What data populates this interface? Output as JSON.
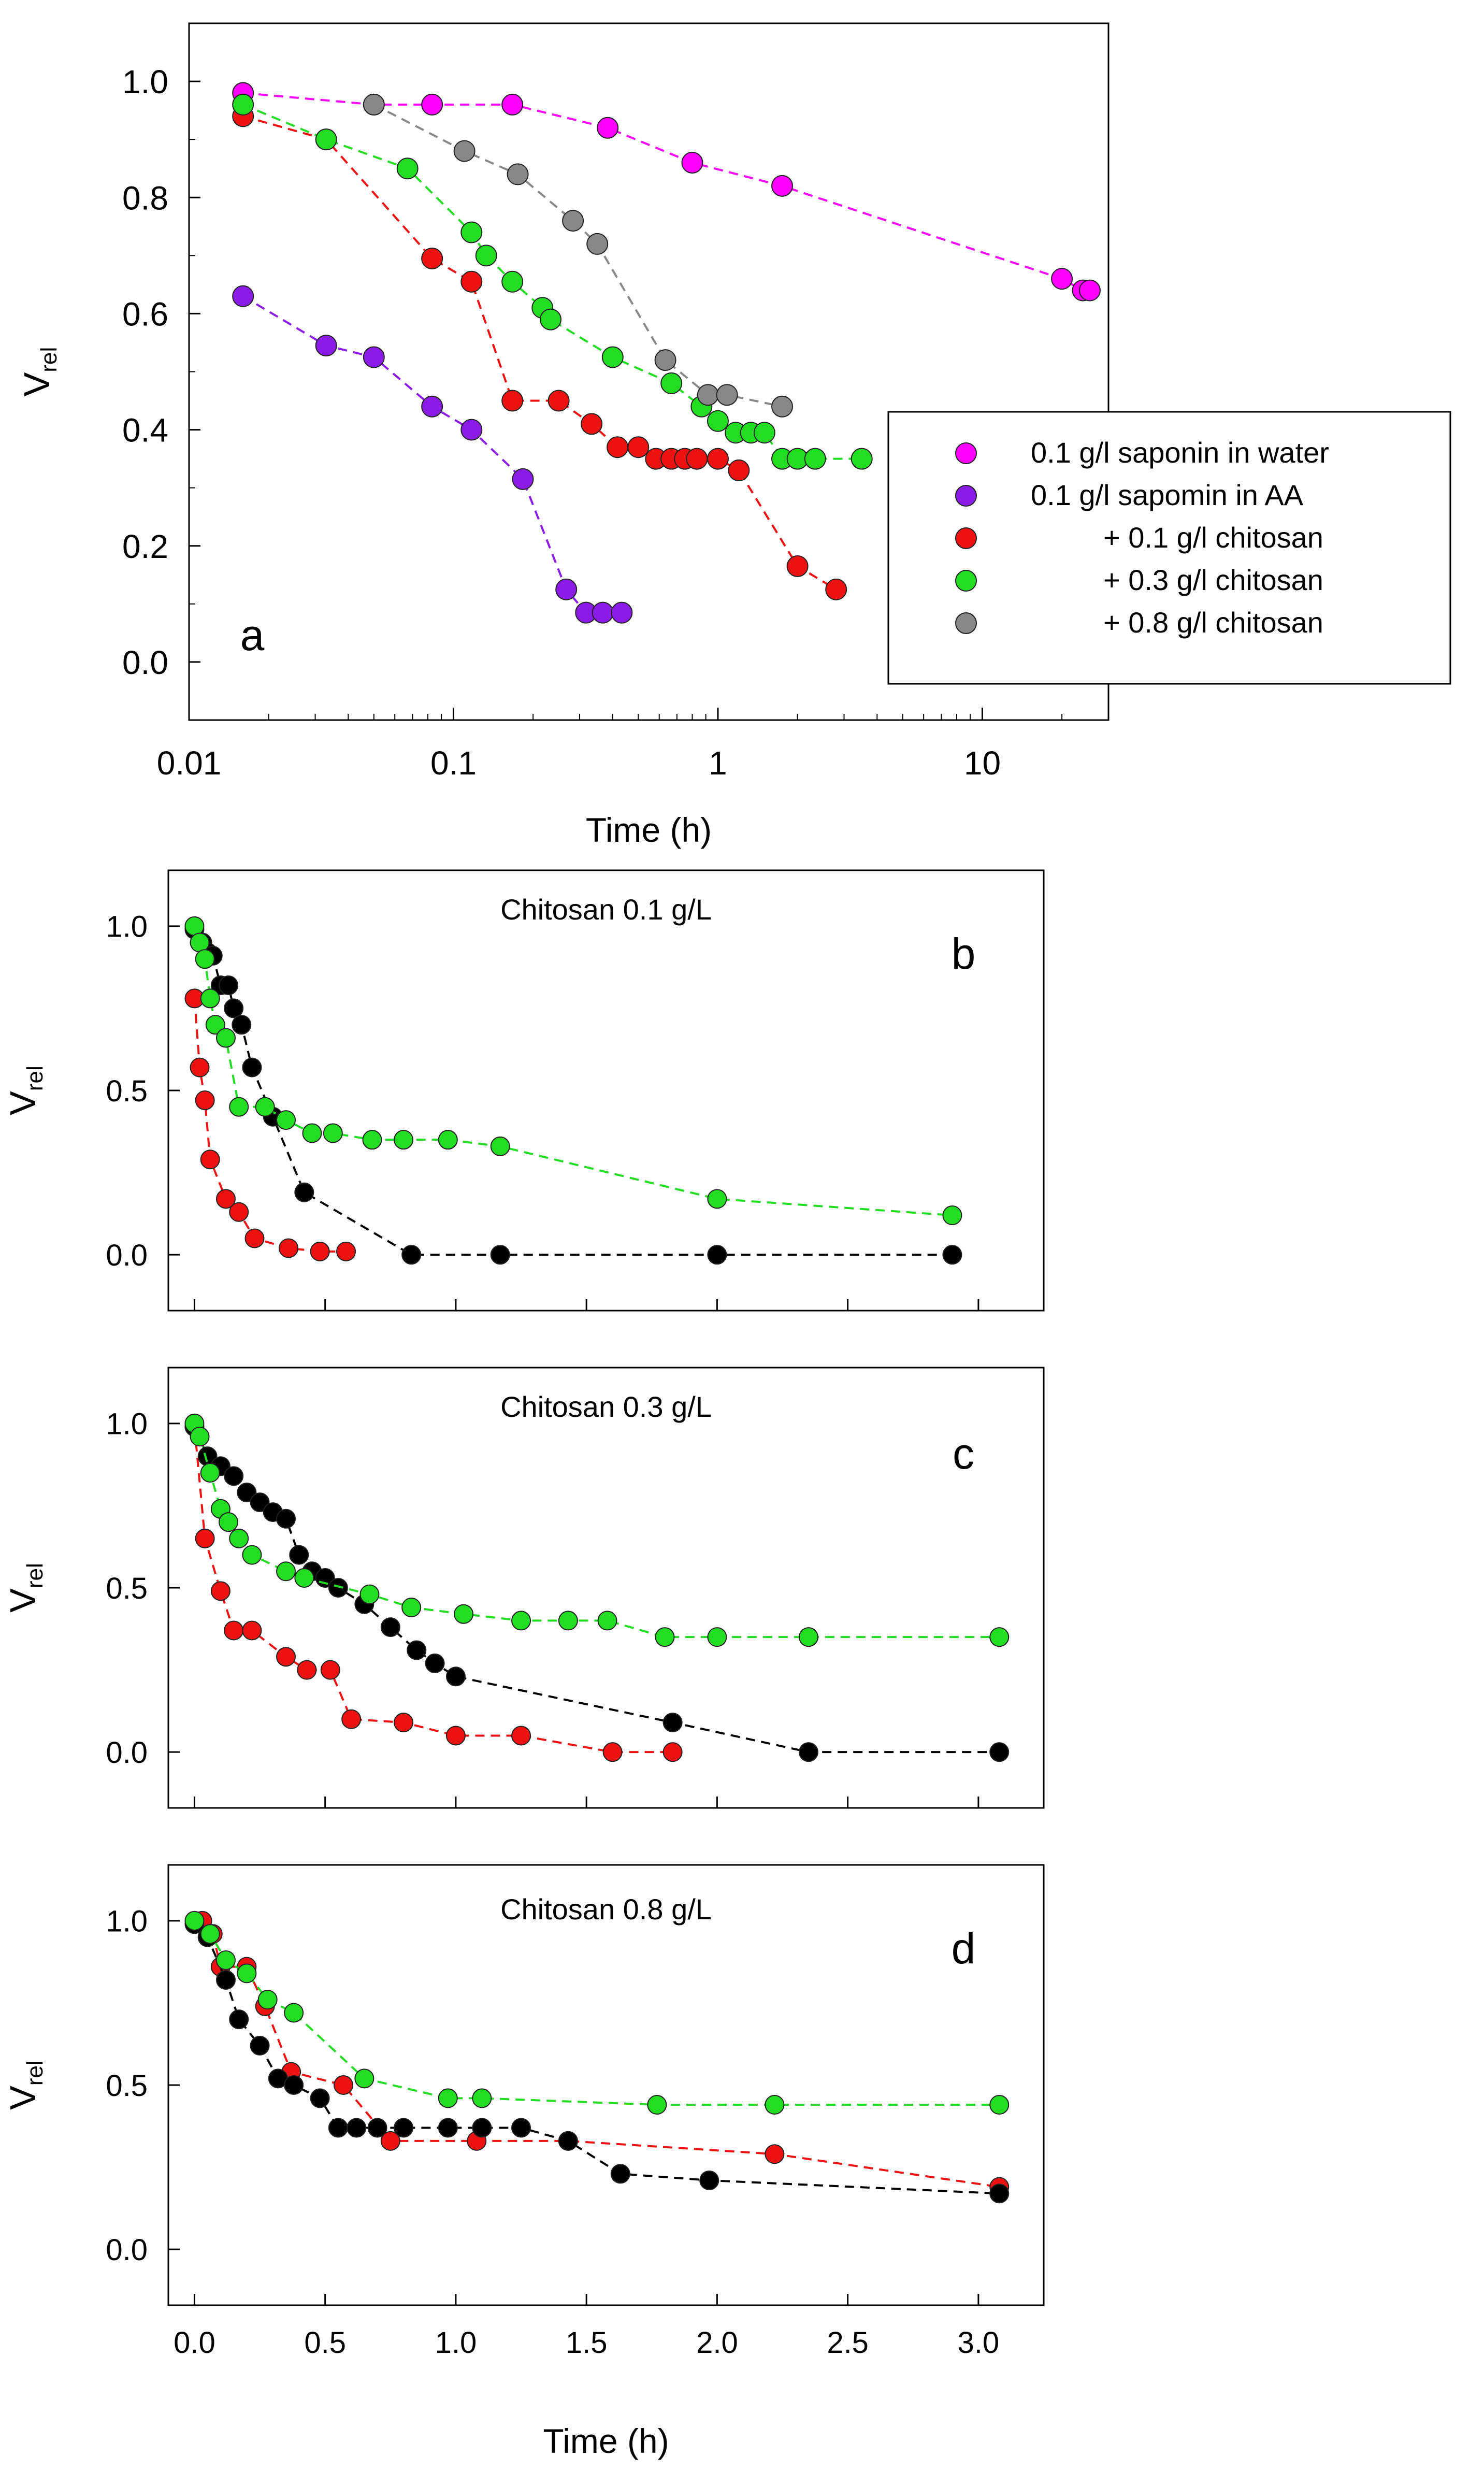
{
  "chart_data": [
    {
      "panel": "a",
      "type": "line",
      "title": "",
      "panel_label": "a",
      "xlabel": "Time (h)",
      "ylabel": "V",
      "ylabel_sub": "rel",
      "xscale": "log",
      "xlim": [
        0.01,
        30
      ],
      "ylim": [
        -0.1,
        1.1
      ],
      "xticks": [
        0.01,
        0.1,
        1,
        10
      ],
      "xtick_labels": [
        "0.01",
        "0.1",
        "1",
        "10"
      ],
      "yticks": [
        0,
        0.2,
        0.4,
        0.6,
        0.8,
        1.0
      ],
      "ytick_labels": [
        "0.0",
        "0.2",
        "0.4",
        "0.6",
        "0.8",
        "1.0"
      ],
      "legend_position": "right",
      "series": [
        {
          "name": "0.1 g/l saponin in water",
          "legend": "0.1 g/l saponin in water",
          "color": "#ff00ff",
          "x": [
            0.016,
            0.05,
            0.083,
            0.167,
            0.383,
            0.8,
            1.75,
            20,
            24,
            25.5
          ],
          "y": [
            0.98,
            0.96,
            0.96,
            0.96,
            0.92,
            0.86,
            0.82,
            0.66,
            0.64,
            0.64
          ]
        },
        {
          "name": "0.1 g/l sapomin in AA",
          "legend": "0.1 g/l sapomin in AA",
          "color": "#8b1ce8",
          "x": [
            0.016,
            0.033,
            0.05,
            0.083,
            0.117,
            0.183,
            0.267,
            0.317,
            0.367,
            0.433
          ],
          "y": [
            0.63,
            0.545,
            0.525,
            0.44,
            0.4,
            0.315,
            0.125,
            0.085,
            0.085,
            0.085
          ]
        },
        {
          "name": "+ 0.1 g/l chitosan",
          "legend": "+ 0.1 g/l chitosan",
          "color": "#ee1111",
          "x": [
            0.016,
            0.033,
            0.083,
            0.117,
            0.167,
            0.25,
            0.333,
            0.417,
            0.5,
            0.583,
            0.667,
            0.75,
            0.833,
            1.0,
            1.2,
            2.0,
            2.8
          ],
          "y": [
            0.94,
            0.9,
            0.695,
            0.655,
            0.45,
            0.45,
            0.41,
            0.37,
            0.37,
            0.35,
            0.35,
            0.35,
            0.35,
            0.35,
            0.33,
            0.165,
            0.125
          ]
        },
        {
          "name": "+ 0.3 g/l chitosan",
          "legend": "+ 0.3 g/l chitosan",
          "color": "#22dd22",
          "x": [
            0.016,
            0.033,
            0.067,
            0.117,
            0.133,
            0.167,
            0.217,
            0.233,
            0.4,
            0.667,
            0.867,
            1.0,
            1.167,
            1.333,
            1.5,
            1.75,
            2.0,
            2.333,
            3.5
          ],
          "y": [
            0.96,
            0.9,
            0.85,
            0.74,
            0.7,
            0.655,
            0.61,
            0.59,
            0.525,
            0.48,
            0.44,
            0.415,
            0.395,
            0.395,
            0.395,
            0.35,
            0.35,
            0.35,
            0.35
          ]
        },
        {
          "name": "+ 0.8 g/l chitosan",
          "legend": "+ 0.8 g/l chitosan",
          "color": "#888888",
          "x": [
            0.05,
            0.11,
            0.175,
            0.283,
            0.35,
            0.633,
            0.917,
            1.083,
            1.75
          ],
          "y": [
            0.96,
            0.88,
            0.84,
            0.76,
            0.72,
            0.52,
            0.46,
            0.46,
            0.44
          ]
        }
      ]
    },
    {
      "panel": "b",
      "type": "line",
      "title": "Chitosan 0.1 g/L",
      "panel_label": "b",
      "xlabel": "",
      "ylabel": "V",
      "ylabel_sub": "rel",
      "xlim": [
        -0.1,
        3.25
      ],
      "ylim": [
        -0.17,
        1.17
      ],
      "xticks": [
        0,
        0.5,
        1.0,
        1.5,
        2.0,
        2.5,
        3.0
      ],
      "yticks": [
        0,
        0.5,
        1.0
      ],
      "ytick_labels": [
        "0.0",
        "0.5",
        "1.0"
      ],
      "series": [
        {
          "name": "red",
          "color": "#ee1111",
          "x": [
            0.0,
            0.02,
            0.04,
            0.06,
            0.12,
            0.17,
            0.23,
            0.36,
            0.48,
            0.58
          ],
          "y": [
            0.78,
            0.57,
            0.47,
            0.29,
            0.17,
            0.13,
            0.05,
            0.02,
            0.01,
            0.01
          ]
        },
        {
          "name": "black",
          "color": "#000000",
          "x": [
            0.0,
            0.03,
            0.05,
            0.07,
            0.1,
            0.13,
            0.15,
            0.18,
            0.22,
            0.3,
            0.42,
            0.83,
            1.17,
            2.0,
            2.9
          ],
          "y": [
            0.99,
            0.95,
            0.92,
            0.91,
            0.82,
            0.82,
            0.75,
            0.7,
            0.57,
            0.42,
            0.19,
            0.0,
            0.0,
            0.0,
            0.0
          ]
        },
        {
          "name": "green",
          "color": "#22dd22",
          "x": [
            0.0,
            0.02,
            0.04,
            0.06,
            0.08,
            0.12,
            0.17,
            0.27,
            0.35,
            0.45,
            0.53,
            0.68,
            0.8,
            0.97,
            1.17,
            2.0,
            2.9
          ],
          "y": [
            1.0,
            0.95,
            0.9,
            0.78,
            0.7,
            0.66,
            0.45,
            0.45,
            0.41,
            0.37,
            0.37,
            0.35,
            0.35,
            0.35,
            0.33,
            0.17,
            0.12
          ]
        }
      ]
    },
    {
      "panel": "c",
      "type": "line",
      "title": "Chitosan 0.3 g/L",
      "panel_label": "c",
      "xlabel": "",
      "ylabel": "V",
      "ylabel_sub": "rel",
      "xlim": [
        -0.1,
        3.25
      ],
      "ylim": [
        -0.17,
        1.17
      ],
      "xticks": [
        0,
        0.5,
        1.0,
        1.5,
        2.0,
        2.5,
        3.0
      ],
      "yticks": [
        0,
        0.5,
        1.0
      ],
      "ytick_labels": [
        "0.0",
        "0.5",
        "1.0"
      ],
      "series": [
        {
          "name": "red",
          "color": "#ee1111",
          "x": [
            0.0,
            0.04,
            0.1,
            0.15,
            0.22,
            0.35,
            0.43,
            0.52,
            0.6,
            0.8,
            1.0,
            1.25,
            1.6,
            1.83
          ],
          "y": [
            0.99,
            0.65,
            0.49,
            0.37,
            0.37,
            0.29,
            0.25,
            0.25,
            0.1,
            0.09,
            0.05,
            0.05,
            0.0,
            0.0
          ]
        },
        {
          "name": "black",
          "color": "#000000",
          "x": [
            0.0,
            0.05,
            0.1,
            0.15,
            0.2,
            0.25,
            0.3,
            0.35,
            0.4,
            0.45,
            0.5,
            0.55,
            0.65,
            0.75,
            0.85,
            0.92,
            1.0,
            1.83,
            2.35,
            3.08
          ],
          "y": [
            0.99,
            0.9,
            0.87,
            0.84,
            0.79,
            0.76,
            0.73,
            0.71,
            0.6,
            0.55,
            0.53,
            0.5,
            0.45,
            0.38,
            0.31,
            0.27,
            0.23,
            0.09,
            0.0,
            0.0
          ]
        },
        {
          "name": "green",
          "color": "#22dd22",
          "x": [
            0.0,
            0.02,
            0.06,
            0.1,
            0.13,
            0.17,
            0.22,
            0.35,
            0.42,
            0.67,
            0.83,
            1.03,
            1.25,
            1.43,
            1.58,
            1.8,
            2.0,
            2.35,
            3.08
          ],
          "y": [
            1.0,
            0.96,
            0.85,
            0.74,
            0.7,
            0.65,
            0.6,
            0.55,
            0.53,
            0.48,
            0.44,
            0.42,
            0.4,
            0.4,
            0.4,
            0.35,
            0.35,
            0.35,
            0.35
          ]
        }
      ]
    },
    {
      "panel": "d",
      "type": "line",
      "title": "Chitosan 0.8 g/L",
      "panel_label": "d",
      "xlabel": "Time (h)",
      "ylabel": "V",
      "ylabel_sub": "rel",
      "xlim": [
        -0.1,
        3.25
      ],
      "ylim": [
        -0.17,
        1.17
      ],
      "xticks": [
        0,
        0.5,
        1.0,
        1.5,
        2.0,
        2.5,
        3.0
      ],
      "xtick_labels": [
        "0.0",
        "0.5",
        "1.0",
        "1.5",
        "2.0",
        "2.5",
        "3.0"
      ],
      "yticks": [
        0,
        0.5,
        1.0
      ],
      "ytick_labels": [
        "0.0",
        "0.5",
        "1.0"
      ],
      "series": [
        {
          "name": "red",
          "color": "#ee1111",
          "x": [
            0.03,
            0.07,
            0.1,
            0.2,
            0.27,
            0.37,
            0.57,
            0.75,
            1.08,
            1.43,
            2.22,
            3.08
          ],
          "y": [
            1.0,
            0.96,
            0.86,
            0.86,
            0.74,
            0.54,
            0.5,
            0.33,
            0.33,
            0.33,
            0.29,
            0.19
          ]
        },
        {
          "name": "black",
          "color": "#000000",
          "x": [
            0.0,
            0.05,
            0.12,
            0.17,
            0.25,
            0.32,
            0.38,
            0.48,
            0.55,
            0.62,
            0.7,
            0.8,
            0.97,
            1.1,
            1.25,
            1.43,
            1.63,
            1.97,
            3.08
          ],
          "y": [
            0.99,
            0.95,
            0.82,
            0.7,
            0.62,
            0.52,
            0.5,
            0.46,
            0.37,
            0.37,
            0.37,
            0.37,
            0.37,
            0.37,
            0.37,
            0.33,
            0.23,
            0.21,
            0.17
          ]
        },
        {
          "name": "green",
          "color": "#22dd22",
          "x": [
            0.0,
            0.06,
            0.12,
            0.2,
            0.28,
            0.38,
            0.65,
            0.97,
            1.1,
            1.77,
            2.22,
            3.08
          ],
          "y": [
            1.0,
            0.96,
            0.88,
            0.84,
            0.76,
            0.72,
            0.52,
            0.46,
            0.46,
            0.44,
            0.44,
            0.44
          ]
        }
      ]
    }
  ]
}
